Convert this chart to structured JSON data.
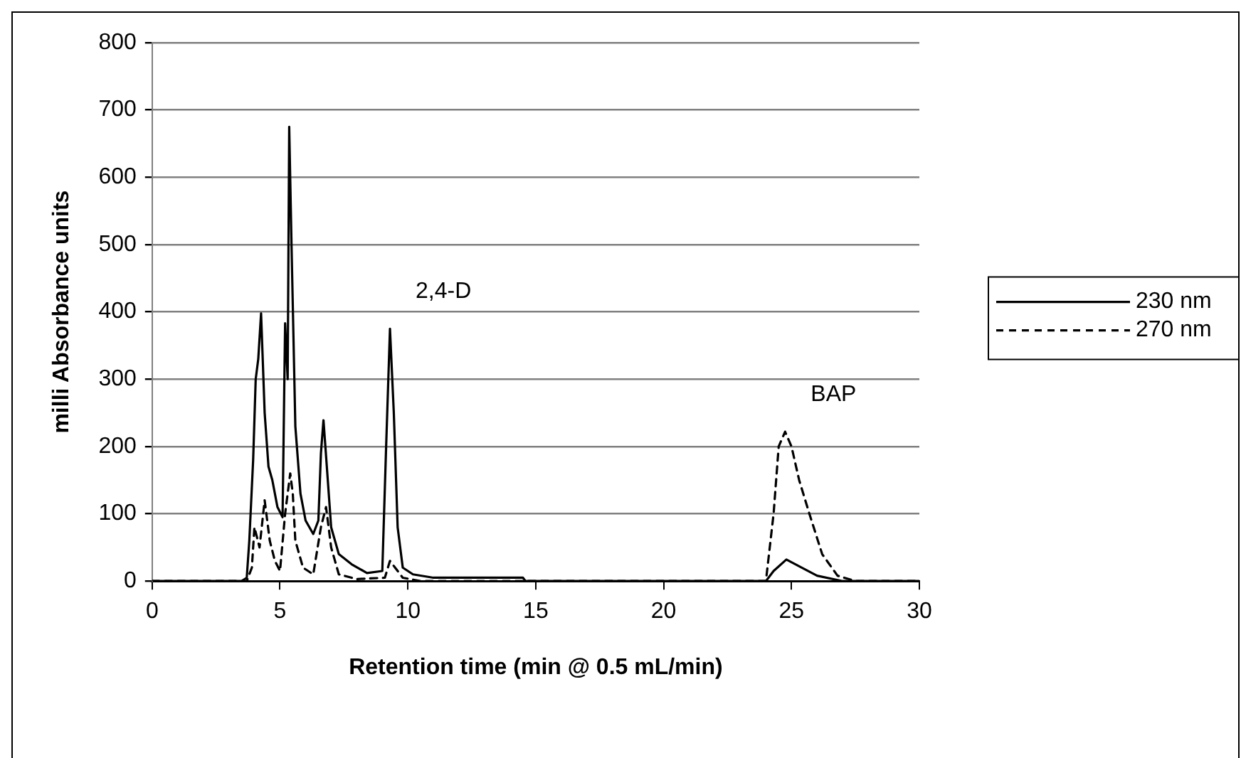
{
  "chart_data": {
    "type": "line",
    "xlabel": "Retention time (min @ 0.5 mL/min)",
    "ylabel": "milli Absorbance units",
    "xlim": [
      0,
      30
    ],
    "xticks": [
      0,
      5,
      10,
      15,
      20,
      25,
      30
    ],
    "ylim": [
      0,
      800
    ],
    "yticks": [
      0,
      100,
      200,
      300,
      400,
      500,
      600,
      700,
      800
    ],
    "grid": "y",
    "legend": "right",
    "marker": "none",
    "annotations": [
      {
        "text": "2,4-D",
        "x": 9.3,
        "y": 375
      },
      {
        "text": "BAP",
        "x": 24.75,
        "y": 222
      }
    ],
    "series": [
      {
        "name": "230 nm",
        "color": "#000000",
        "line_style": "solid",
        "x": [
          0,
          3.5,
          3.7,
          3.8,
          3.95,
          4.05,
          4.15,
          4.26,
          4.4,
          4.55,
          4.7,
          4.9,
          5.1,
          5.2,
          5.3,
          5.36,
          5.45,
          5.6,
          5.8,
          6.0,
          6.3,
          6.5,
          6.6,
          6.7,
          6.85,
          7.0,
          7.3,
          7.8,
          8.4,
          9.0,
          9.15,
          9.3,
          9.45,
          9.6,
          9.8,
          10.2,
          11,
          14.5,
          14.6,
          24.0,
          24.3,
          24.8,
          25.3,
          26,
          27,
          30
        ],
        "values": [
          0,
          0,
          5,
          60,
          180,
          300,
          330,
          398,
          250,
          170,
          150,
          110,
          95,
          383,
          300,
          675,
          500,
          230,
          130,
          90,
          70,
          90,
          190,
          239,
          160,
          80,
          40,
          25,
          12,
          15,
          200,
          375,
          250,
          80,
          20,
          10,
          5,
          5,
          0,
          0,
          15,
          32,
          22,
          8,
          0,
          0
        ]
      },
      {
        "name": "270 nm",
        "color": "#000000",
        "line_style": "dashed",
        "x": [
          0,
          3.7,
          3.9,
          4.0,
          4.2,
          4.4,
          4.6,
          4.8,
          5.0,
          5.2,
          5.4,
          5.5,
          5.6,
          5.9,
          6.3,
          6.6,
          6.8,
          7.0,
          7.3,
          8,
          9.1,
          9.3,
          9.5,
          9.8,
          10.5,
          24.0,
          24.3,
          24.5,
          24.75,
          25.0,
          25.3,
          25.7,
          26.2,
          26.8,
          27.5,
          30
        ],
        "values": [
          0,
          0,
          20,
          80,
          50,
          120,
          60,
          30,
          15,
          100,
          160,
          130,
          60,
          20,
          10,
          80,
          110,
          50,
          10,
          3,
          5,
          30,
          20,
          5,
          0,
          0,
          100,
          200,
          222,
          200,
          150,
          100,
          40,
          8,
          0,
          0
        ]
      }
    ]
  }
}
